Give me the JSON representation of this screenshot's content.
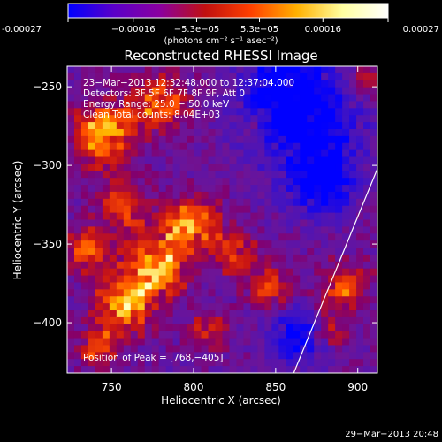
{
  "colorbar": {
    "ticks": [
      {
        "value": -0.00027,
        "label": "-0.00027"
      },
      {
        "value": -0.00016,
        "label": "−0.00016"
      },
      {
        "value": -5.3e-05,
        "label": "−5.3e−05"
      },
      {
        "value": 5.3e-05,
        "label": "5.3e−05"
      },
      {
        "value": 0.00016,
        "label": "0.00016"
      },
      {
        "value": 0.00027,
        "label": "0.00027"
      }
    ],
    "range": [
      -0.00027,
      0.00027
    ],
    "units": "(photons cm⁻² s⁻¹ asec⁻²)",
    "colors": [
      "#0000ff",
      "#5a00c8",
      "#8a00a0",
      "#c01010",
      "#ff4000",
      "#ffb000",
      "#ffffa0",
      "#ffffff"
    ]
  },
  "chart_data": {
    "type": "heatmap",
    "title": "Reconstructed RHESSI Image",
    "xlabel": "Heliocentric X (arcsec)",
    "ylabel": "Heliocentric Y (arcsec)",
    "xlim": [
      723,
      912
    ],
    "ylim": [
      -432,
      -237
    ],
    "xticks": [
      750,
      800,
      850,
      900
    ],
    "yticks": [
      -250,
      -300,
      -350,
      -400
    ],
    "annotations": [
      "23−Mar−2013 12:32:48.000 to 12:37:04.000",
      "Detectors: 3F 5F 6F 7F 8F 9F, Att 0",
      "Energy Range: 25.0 − 50.0 keV",
      "Clean     Total counts: 8.04E+03"
    ],
    "peak_label": "Position of Peak = [768,−405]",
    "peak": [
      768,
      -405
    ],
    "limb_line": [
      [
        861,
        -432
      ],
      [
        912,
        -302
      ]
    ]
  },
  "footer": {
    "timestamp": "29−Mar−2013 20:48"
  }
}
